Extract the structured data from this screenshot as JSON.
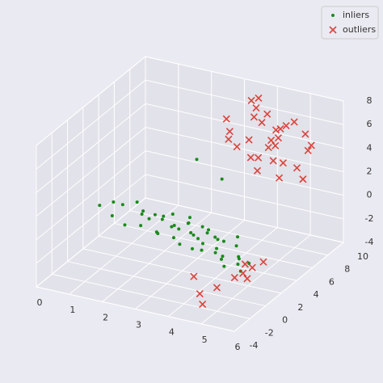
{
  "chart_data": {
    "type": "scatter3d",
    "series": [
      {
        "name": "inliers",
        "color": "#1a8a1a",
        "marker": "dot",
        "x": [
          0.5,
          0.8,
          1.0,
          1.2,
          1.4,
          1.5,
          1.7,
          1.9,
          2.0,
          2.1,
          2.2,
          2.3,
          2.4,
          2.5,
          2.6,
          2.7,
          2.8,
          2.9,
          3.0,
          3.0,
          3.1,
          3.2,
          3.3,
          3.4,
          3.5,
          3.5,
          3.6,
          3.7,
          3.8,
          3.9,
          4.0,
          4.0,
          4.1,
          4.2,
          4.3,
          4.4,
          4.5,
          4.6,
          4.7,
          4.8,
          4.9,
          5.0,
          5.1,
          5.2,
          5.3,
          5.4,
          5.5,
          5.6,
          2.5,
          3.5
        ],
        "y": [
          2,
          2.5,
          1.5,
          2,
          3,
          1,
          2.5,
          1.5,
          2,
          0.5,
          3,
          1.5,
          2,
          1,
          2.5,
          0,
          1.5,
          2,
          1,
          3,
          0.5,
          2,
          1.5,
          0,
          2.5,
          1,
          1.5,
          0.5,
          2,
          -0.5,
          1,
          2,
          0,
          1.5,
          -1,
          0.5,
          1,
          -0.5,
          0,
          1.5,
          -1,
          0.5,
          -1.5,
          0,
          -0.5,
          -1,
          0,
          -1.5,
          6,
          5
        ],
        "z": [
          0,
          0.2,
          -0.3,
          0.5,
          0.3,
          -0.5,
          0,
          0.4,
          -0.2,
          0.1,
          -0.4,
          0.6,
          0,
          -0.6,
          0.3,
          0.2,
          -0.1,
          -0.5,
          0.4,
          0,
          -0.3,
          0.2,
          0.5,
          -0.4,
          -0.2,
          0.1,
          -0.6,
          0.3,
          0,
          -0.2,
          0.4,
          -0.5,
          0.1,
          -0.3,
          0.2,
          -0.4,
          0,
          -0.1,
          -0.6,
          0.3,
          -0.2,
          0.2,
          -0.4,
          -0.5,
          0,
          -0.3,
          -0.7,
          -0.5,
          3,
          2.5
        ]
      },
      {
        "name": "outliers",
        "color": "#d9281c",
        "marker": "x",
        "x": [
          3.5,
          4,
          4.5,
          5,
          3.8,
          4.2,
          4.8,
          5.2,
          3.6,
          4.4,
          5,
          5.5,
          4,
          4.6,
          3.9,
          4.3,
          5.1,
          4.7,
          3.7,
          5.4,
          4.1,
          4.9,
          5.3,
          4.5,
          3.4,
          4.2,
          5,
          5.6,
          4.4,
          3.9,
          5,
          5.3,
          5.6,
          4.6,
          5.8,
          4.8,
          5.2,
          5.5,
          4.3,
          5.7
        ],
        "y": [
          6,
          7,
          8,
          6.5,
          7.5,
          5.5,
          7,
          8.5,
          6.5,
          7,
          6,
          8,
          8,
          5,
          7,
          6,
          7.5,
          6.5,
          5,
          8,
          7,
          6,
          7,
          9,
          6,
          8,
          5.5,
          6.5,
          7.5,
          8,
          -2,
          -1,
          0,
          -2.5,
          -1.5,
          -3,
          0.5,
          -0.5,
          -2,
          1
        ],
        "z": [
          6,
          7,
          5,
          4,
          8,
          6,
          6.5,
          5.5,
          4.5,
          7.5,
          3,
          5,
          6,
          5,
          3.5,
          8.5,
          7,
          4,
          6,
          4.5,
          2.5,
          7,
          3.5,
          5.5,
          7,
          4,
          6,
          3,
          5,
          8,
          -2,
          -1.5,
          -1,
          -2.5,
          -1,
          -3,
          -2,
          -0.5,
          -1.5,
          -1
        ]
      }
    ],
    "xlim": [
      0,
      6
    ],
    "ylim": [
      -4,
      10
    ],
    "zlim": [
      -4,
      8
    ],
    "xticks": [
      0,
      1,
      2,
      3,
      4,
      5,
      6
    ],
    "yticks": [
      -4,
      -2,
      0,
      2,
      4,
      6,
      8,
      10
    ],
    "zticks": [
      -4,
      -2,
      0,
      2,
      4,
      6,
      8
    ],
    "grid": true,
    "legend": "upper right"
  }
}
